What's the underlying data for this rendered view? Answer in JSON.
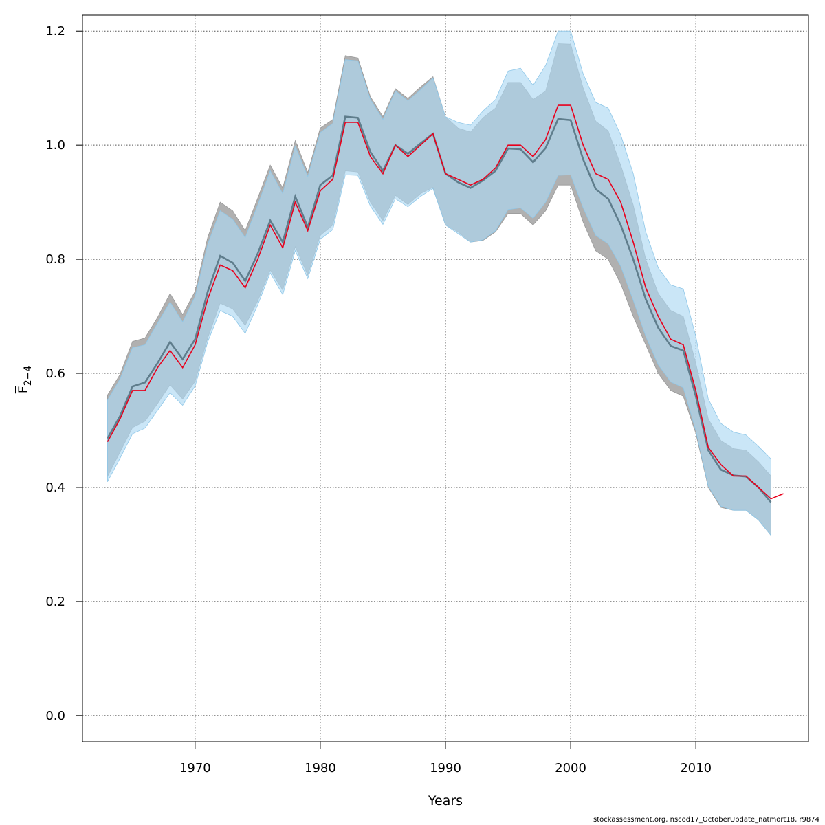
{
  "chart_data": {
    "type": "line",
    "xlabel": "Years",
    "ylabel_main": "F",
    "ylabel_sub": "2−4",
    "xlim": [
      1961,
      2019
    ],
    "ylim": [
      -0.046,
      1.228
    ],
    "x_ticks": [
      1970,
      1980,
      1990,
      2000,
      2010
    ],
    "y_ticks": [
      0.0,
      0.2,
      0.4,
      0.6,
      0.8,
      1.0,
      1.2
    ],
    "y_tick_labels": [
      "0.0",
      "0.2",
      "0.4",
      "0.6",
      "0.8",
      "1.0",
      "1.2"
    ],
    "grid": true,
    "colors": {
      "band_gray": "#b0b0b0",
      "band_blue": "#aed8f2",
      "line_gray": "#5f7d8c",
      "line_red": "#e8001c",
      "grid": "#555555"
    },
    "years": [
      1963,
      1964,
      1965,
      1966,
      1967,
      1968,
      1969,
      1970,
      1971,
      1972,
      1973,
      1974,
      1975,
      1976,
      1977,
      1978,
      1979,
      1980,
      1981,
      1982,
      1983,
      1984,
      1985,
      1986,
      1987,
      1988,
      1989,
      1990,
      1991,
      1992,
      1993,
      1994,
      1995,
      1996,
      1997,
      1998,
      1999,
      2000,
      2001,
      2002,
      2003,
      2004,
      2005,
      2006,
      2007,
      2008,
      2009,
      2010,
      2011,
      2012,
      2013,
      2014,
      2015,
      2016
    ],
    "series": [
      {
        "role": "gray_estimate",
        "values": [
          0.486,
          0.525,
          0.577,
          0.584,
          0.618,
          0.655,
          0.625,
          0.66,
          0.743,
          0.806,
          0.794,
          0.762,
          0.81,
          0.868,
          0.83,
          0.91,
          0.856,
          0.93,
          0.947,
          1.05,
          1.048,
          0.988,
          0.955,
          1.0,
          0.985,
          1.003,
          1.02,
          0.95,
          0.935,
          0.925,
          0.938,
          0.955,
          0.994,
          0.993,
          0.97,
          0.995,
          1.046,
          1.044,
          0.975,
          0.923,
          0.906,
          0.86,
          0.8,
          0.73,
          0.68,
          0.648,
          0.64,
          0.56,
          0.465,
          0.431,
          0.421,
          0.419,
          0.4,
          0.374
        ],
        "upper": [
          0.562,
          0.598,
          0.656,
          0.662,
          0.698,
          0.74,
          0.703,
          0.744,
          0.838,
          0.9,
          0.885,
          0.85,
          0.907,
          0.965,
          0.925,
          1.008,
          0.952,
          1.03,
          1.045,
          1.157,
          1.153,
          1.085,
          1.05,
          1.099,
          1.082,
          1.102,
          1.12,
          1.05,
          1.03,
          1.023,
          1.048,
          1.065,
          1.11,
          1.11,
          1.08,
          1.095,
          1.178,
          1.177,
          1.1,
          1.042,
          1.025,
          0.965,
          0.895,
          0.8,
          0.74,
          0.71,
          0.7,
          0.618,
          0.52,
          0.482,
          0.468,
          0.465,
          0.445,
          0.42
        ],
        "lower": [
          0.419,
          0.462,
          0.505,
          0.516,
          0.547,
          0.58,
          0.555,
          0.586,
          0.662,
          0.723,
          0.713,
          0.684,
          0.727,
          0.781,
          0.746,
          0.822,
          0.772,
          0.842,
          0.86,
          0.955,
          0.953,
          0.9,
          0.868,
          0.912,
          0.896,
          0.915,
          0.926,
          0.86,
          0.848,
          0.83,
          0.833,
          0.848,
          0.88,
          0.88,
          0.86,
          0.885,
          0.93,
          0.93,
          0.865,
          0.815,
          0.8,
          0.757,
          0.7,
          0.65,
          0.6,
          0.57,
          0.56,
          0.495,
          0.4,
          0.365,
          0.36,
          0.36,
          0.343,
          0.316
        ]
      },
      {
        "role": "blue_estimate",
        "values": [
          0.48,
          0.52,
          0.57,
          0.57,
          0.61,
          0.64,
          0.61,
          0.65,
          0.73,
          0.79,
          0.78,
          0.75,
          0.8,
          0.86,
          0.82,
          0.9,
          0.85,
          0.92,
          0.94,
          1.04,
          1.04,
          0.98,
          0.95,
          1.0,
          0.98,
          1.0,
          1.02,
          0.95,
          0.94,
          0.93,
          0.94,
          0.96,
          1.0,
          1.0,
          0.98,
          1.01,
          1.07,
          1.07,
          1.0,
          0.95,
          0.94,
          0.9,
          0.83,
          0.75,
          0.7,
          0.66,
          0.65,
          0.57,
          0.47,
          0.44,
          0.42,
          0.42,
          0.4,
          0.38
        ],
        "upper": [
          0.553,
          0.59,
          0.645,
          0.65,
          0.688,
          0.725,
          0.69,
          0.735,
          0.826,
          0.885,
          0.87,
          0.838,
          0.895,
          0.955,
          0.915,
          0.998,
          0.945,
          1.022,
          1.038,
          1.15,
          1.148,
          1.08,
          1.045,
          1.095,
          1.078,
          1.097,
          1.118,
          1.05,
          1.04,
          1.035,
          1.06,
          1.08,
          1.13,
          1.135,
          1.105,
          1.14,
          1.2,
          1.2,
          1.125,
          1.075,
          1.065,
          1.018,
          0.95,
          0.848,
          0.785,
          0.755,
          0.748,
          0.665,
          0.555,
          0.512,
          0.497,
          0.492,
          0.472,
          0.45
        ],
        "lower": [
          0.41,
          0.451,
          0.494,
          0.504,
          0.535,
          0.566,
          0.544,
          0.578,
          0.655,
          0.71,
          0.7,
          0.67,
          0.72,
          0.776,
          0.738,
          0.815,
          0.766,
          0.835,
          0.852,
          0.948,
          0.947,
          0.893,
          0.861,
          0.906,
          0.892,
          0.91,
          0.924,
          0.86,
          0.845,
          0.83,
          0.834,
          0.85,
          0.887,
          0.89,
          0.872,
          0.9,
          0.947,
          0.948,
          0.89,
          0.842,
          0.827,
          0.788,
          0.728,
          0.665,
          0.615,
          0.585,
          0.575,
          0.5,
          0.402,
          0.367,
          0.36,
          0.36,
          0.343,
          0.316
        ]
      },
      {
        "role": "red_estimate",
        "years": [
          2016,
          2017
        ],
        "values": [
          0.38,
          0.389
        ]
      }
    ]
  },
  "footer": "stockassessment.org, nscod17_OctoberUpdate_natmort18, r9874"
}
